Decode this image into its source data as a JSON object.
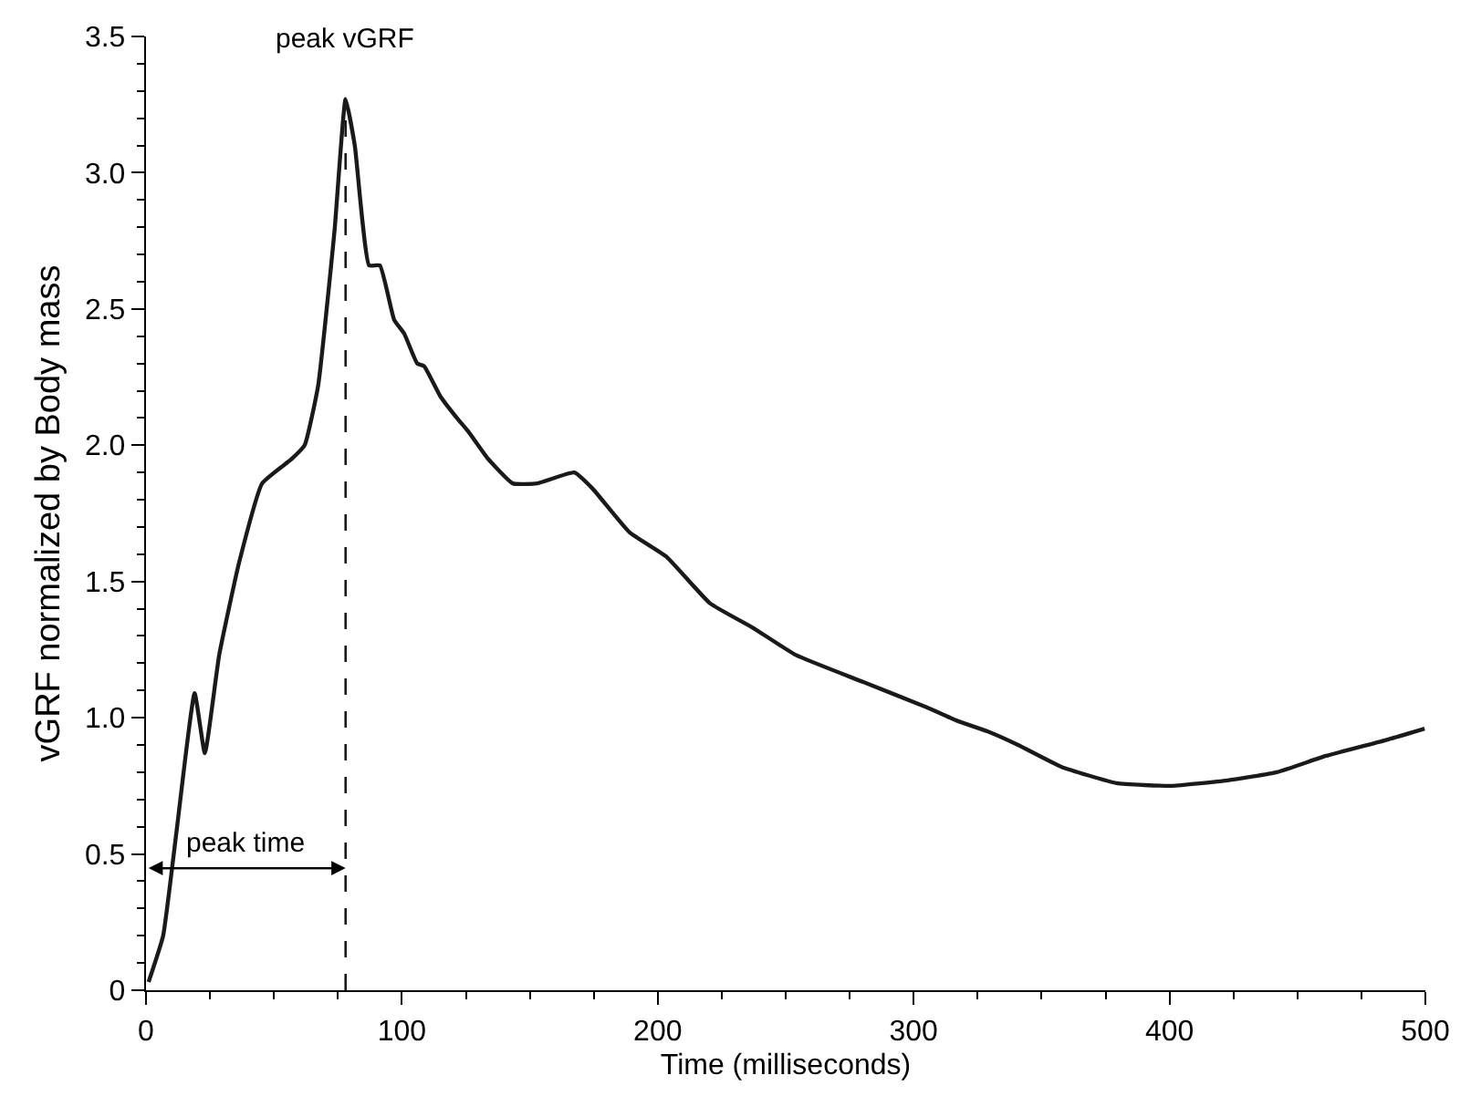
{
  "chart_data": {
    "type": "line",
    "xlabel": "Time (milliseconds)",
    "ylabel": "vGRF normalized by Body mass",
    "x": [
      1,
      6.7,
      11.9,
      19,
      23,
      28.6,
      36.4,
      45.4,
      57,
      62,
      67.3,
      73.7,
      78,
      81.6,
      87.2,
      91.4,
      97,
      100.9,
      106,
      108.7,
      115,
      121.5,
      126,
      133.7,
      143.3,
      153,
      167.4,
      174.6,
      189,
      203.5,
      220.4,
      237.2,
      254,
      280.6,
      304.7,
      316.7,
      328.8,
      340.8,
      357.7,
      379.3,
      401,
      422.7,
      442,
      461.2,
      485.3,
      499.7
    ],
    "series": [
      {
        "color": "#1a1a1a",
        "values": [
          0.03,
          0.2,
          0.58,
          1.09,
          0.87,
          1.23,
          1.57,
          1.86,
          1.95,
          2.0,
          2.22,
          2.79,
          3.27,
          3.1,
          2.66,
          2.66,
          2.46,
          2.41,
          2.3,
          2.29,
          2.18,
          2.1,
          2.05,
          1.95,
          1.86,
          1.86,
          1.9,
          1.84,
          1.68,
          1.59,
          1.42,
          1.33,
          1.23,
          1.13,
          1.04,
          0.99,
          0.95,
          0.9,
          0.82,
          0.76,
          0.75,
          0.77,
          0.8,
          0.86,
          0.92,
          0.96
        ]
      }
    ],
    "xlim": [
      0,
      500
    ],
    "xticks": [
      0,
      {
        "value": 25,
        "label": null
      },
      {
        "value": 50,
        "label": null
      },
      {
        "value": 75,
        "label": null
      },
      100,
      {
        "value": 125,
        "label": null
      },
      {
        "value": 150,
        "label": null
      },
      {
        "value": 175,
        "label": null
      },
      200,
      {
        "value": 225,
        "label": null
      },
      {
        "value": 250,
        "label": null
      },
      {
        "value": 275,
        "label": null
      },
      300,
      {
        "value": 325,
        "label": null
      },
      {
        "value": 350,
        "label": null
      },
      {
        "value": 375,
        "label": null
      },
      400,
      {
        "value": 425,
        "label": null
      },
      {
        "value": 450,
        "label": null
      },
      {
        "value": 475,
        "label": null
      },
      500
    ],
    "ylim": [
      0,
      3.5
    ],
    "yticks": [
      {
        "value": 0,
        "label": "0"
      },
      {
        "value": 0.1,
        "label": null
      },
      {
        "value": 0.2,
        "label": null
      },
      {
        "value": 0.3,
        "label": null
      },
      {
        "value": 0.4,
        "label": null
      },
      {
        "value": 0.5,
        "label": "0.5"
      },
      {
        "value": 0.6,
        "label": null
      },
      {
        "value": 0.7,
        "label": null
      },
      {
        "value": 0.8,
        "label": null
      },
      {
        "value": 0.9,
        "label": null
      },
      {
        "value": 1.0,
        "label": "1.0"
      },
      {
        "value": 1.1,
        "label": null
      },
      {
        "value": 1.2,
        "label": null
      },
      {
        "value": 1.3,
        "label": null
      },
      {
        "value": 1.4,
        "label": null
      },
      {
        "value": 1.5,
        "label": "1.5"
      },
      {
        "value": 1.6,
        "label": null
      },
      {
        "value": 1.7,
        "label": null
      },
      {
        "value": 1.8,
        "label": null
      },
      {
        "value": 1.9,
        "label": null
      },
      {
        "value": 2.0,
        "label": "2.0"
      },
      {
        "value": 2.1,
        "label": null
      },
      {
        "value": 2.2,
        "label": null
      },
      {
        "value": 2.3,
        "label": null
      },
      {
        "value": 2.4,
        "label": null
      },
      {
        "value": 2.5,
        "label": "2.5"
      },
      {
        "value": 2.6,
        "label": null
      },
      {
        "value": 2.7,
        "label": null
      },
      {
        "value": 2.8,
        "label": null
      },
      {
        "value": 2.9,
        "label": null
      },
      {
        "value": 3.0,
        "label": "3.0"
      },
      {
        "value": 3.1,
        "label": null
      },
      {
        "value": 3.2,
        "label": null
      },
      {
        "value": 3.3,
        "label": null
      },
      {
        "value": 3.4,
        "label": null
      },
      {
        "value": 3.5,
        "label": "3.5"
      }
    ],
    "ref_lines": [
      {
        "axis": "x",
        "value": 78,
        "label": "peak vGRF",
        "line_style": "dashed",
        "color": "#1a1a1a"
      }
    ],
    "annotations": [
      "peak time"
    ],
    "marker": "none",
    "line_style": "solid"
  }
}
